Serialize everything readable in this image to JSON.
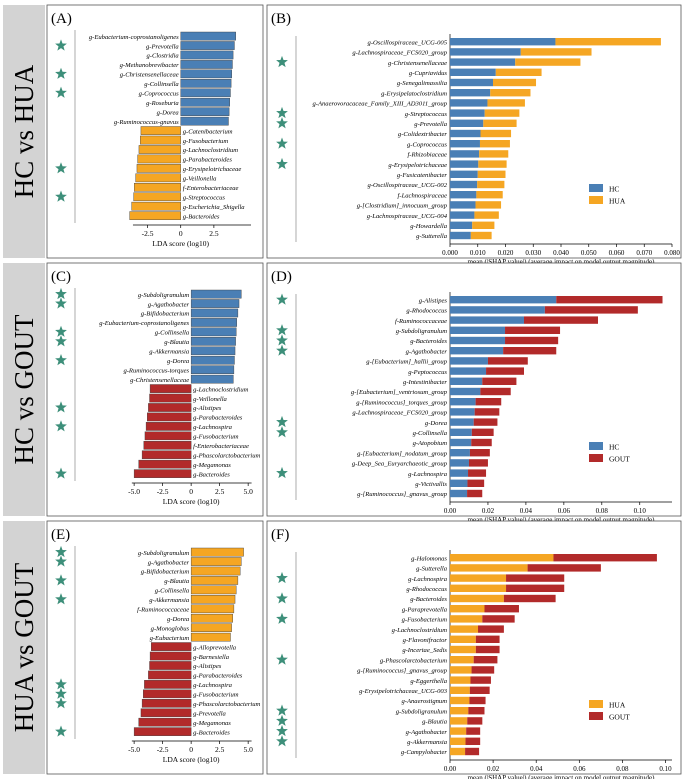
{
  "colors": {
    "hc": "#4a7fb5",
    "hua": "#f5a623",
    "gout": "#b22a2a",
    "star": "#3d8f7a",
    "row_label_bg": "#d3d3d3",
    "border": "#555555"
  },
  "rows": [
    {
      "label": "HC vs HUA"
    },
    {
      "label": "HC vs GOUT"
    },
    {
      "label": "HUA vs GOUT"
    }
  ],
  "chart_data": [
    {
      "type": "bar",
      "panel": "(A)",
      "xlabel": "LDA score (log10)",
      "xlim": [
        -4.2,
        5.6
      ],
      "xticks": [
        -2.5,
        0,
        2.5
      ],
      "groups": [
        "HC",
        "HUA"
      ],
      "bars": [
        {
          "label": "g-Eubacterium-coprostanoligenes",
          "value": 4.15,
          "star": false
        },
        {
          "label": "g-Prevotella",
          "value": 4.05,
          "star": true
        },
        {
          "label": "g-Clostridia",
          "value": 3.95,
          "star": false
        },
        {
          "label": "g-Methanobrevibacter",
          "value": 3.9,
          "star": false
        },
        {
          "label": "g-Christensenellaceae",
          "value": 3.85,
          "star": true
        },
        {
          "label": "g-Collinsella",
          "value": 3.8,
          "star": false
        },
        {
          "label": "g-Coprococcus",
          "value": 3.75,
          "star": true
        },
        {
          "label": "g-Roseburia",
          "value": 3.7,
          "star": false
        },
        {
          "label": "g-Dorea",
          "value": 3.65,
          "star": false
        },
        {
          "label": "g-Ruminococcus-gnavus",
          "value": 3.6,
          "star": false
        },
        {
          "label": "g-Catenibacterium",
          "value": -3.0,
          "star": false
        },
        {
          "label": "g-Fusobacterium",
          "value": -3.05,
          "star": false
        },
        {
          "label": "g-Lachnoclostridium",
          "value": -3.15,
          "star": false
        },
        {
          "label": "g-Parabacteroides",
          "value": -3.25,
          "star": false
        },
        {
          "label": "g-Erysipelotrichaceae",
          "value": -3.3,
          "star": true
        },
        {
          "label": "g-Veillonella",
          "value": -3.4,
          "star": false
        },
        {
          "label": "f-Enterobacteriaceae",
          "value": -3.5,
          "star": false
        },
        {
          "label": "g-Streptococcus",
          "value": -3.55,
          "star": true
        },
        {
          "label": "g-Escherichia_Shigella",
          "value": -3.7,
          "star": false
        },
        {
          "label": "g-Bacteroides",
          "value": -3.85,
          "star": false
        }
      ]
    },
    {
      "type": "bar",
      "panel": "(B)",
      "xlabel": "mean (|SHAP value|) (average impact on model output magnitude)",
      "xlim": [
        0,
        0.08
      ],
      "xticks": [
        0,
        0.01,
        0.02,
        0.03,
        0.04,
        0.05,
        0.06,
        0.07,
        0.08
      ],
      "xtick_labels": [
        "0.000",
        "0.010",
        "0.020",
        "0.030",
        "0.040",
        "0.050",
        "0.060",
        "0.070",
        "0.080"
      ],
      "legend": [
        "HC",
        "HUA"
      ],
      "legend_position": "bottom-right",
      "series": [
        {
          "name": "HC",
          "values": [
            0.038,
            0.0255,
            0.0235,
            0.0165,
            0.0155,
            0.0145,
            0.0135,
            0.0125,
            0.012,
            0.011,
            0.0108,
            0.0105,
            0.0102,
            0.01,
            0.0098,
            0.0095,
            0.0092,
            0.0088,
            0.008,
            0.0075
          ]
        },
        {
          "name": "HUA",
          "values": [
            0.038,
            0.0255,
            0.0235,
            0.0165,
            0.0155,
            0.0145,
            0.0135,
            0.0125,
            0.012,
            0.011,
            0.0108,
            0.0105,
            0.0102,
            0.01,
            0.0098,
            0.0095,
            0.0092,
            0.0088,
            0.008,
            0.0075
          ]
        }
      ],
      "bars": [
        {
          "label": "g-Oscillospiraceae_UCG-005",
          "star": false
        },
        {
          "label": "g-Lachnospiraceae_FCS020_group",
          "star": false
        },
        {
          "label": "g-Christensenellaceae",
          "star": true
        },
        {
          "label": "g-Cupriavidus",
          "star": false
        },
        {
          "label": "g-Senegalimassilia",
          "star": false
        },
        {
          "label": "g-Erysipelatoclostridium",
          "star": false
        },
        {
          "label": "g-Anaerovoracaceae_Family_XIII_AD3011_group",
          "star": false
        },
        {
          "label": "g-Streptococcus",
          "star": true
        },
        {
          "label": "g-Prevotella",
          "star": true
        },
        {
          "label": "g-Colidextribacter",
          "star": false
        },
        {
          "label": "g-Coprococcus",
          "star": true
        },
        {
          "label": "f-Rhizobiaceae",
          "star": false
        },
        {
          "label": "g-Erysipelotrichaceae",
          "star": true
        },
        {
          "label": "g-Fusicatenibacter",
          "star": false
        },
        {
          "label": "g-Oscillospiraceae_UCG-002",
          "star": false
        },
        {
          "label": "f-Lachnospiraceae",
          "star": false
        },
        {
          "label": "g-[Clostridium]_innocuum_group",
          "star": false
        },
        {
          "label": "g-Lachnospiraceae_UCG-004",
          "star": false
        },
        {
          "label": "g-Howardella",
          "star": false
        },
        {
          "label": "g-Sutterella",
          "star": false
        }
      ]
    },
    {
      "type": "bar",
      "panel": "(C)",
      "xlabel": "LDA score (log10)",
      "xlim": [
        -5.8,
        5.6
      ],
      "xticks": [
        -5.0,
        -2.5,
        0,
        2.5,
        5.0
      ],
      "groups": [
        "HC",
        "GOUT"
      ],
      "bars": [
        {
          "label": "g-Subdoligranulum",
          "value": 4.4,
          "star": true
        },
        {
          "label": "g-Agathobacter",
          "value": 4.2,
          "star": true
        },
        {
          "label": "g-Bifidobacterium",
          "value": 4.1,
          "star": false
        },
        {
          "label": "g-Eubacterium-coprostanoligenes",
          "value": 4.0,
          "star": false
        },
        {
          "label": "g-Collinsella",
          "value": 3.95,
          "star": true
        },
        {
          "label": "g-Blautia",
          "value": 3.9,
          "star": true
        },
        {
          "label": "g-Akkermansia",
          "value": 3.85,
          "star": false
        },
        {
          "label": "g-Dorea",
          "value": 3.8,
          "star": true
        },
        {
          "label": "g-Ruminococcus-torques",
          "value": 3.75,
          "star": false
        },
        {
          "label": "g-Christensenellaceae",
          "value": 3.7,
          "star": false
        },
        {
          "label": "g-Lachnoclostridium",
          "value": -3.6,
          "star": false
        },
        {
          "label": "g-Veillonella",
          "value": -3.65,
          "star": false
        },
        {
          "label": "g-Alistipes",
          "value": -3.75,
          "star": true
        },
        {
          "label": "g-Parabacteroides",
          "value": -3.85,
          "star": false
        },
        {
          "label": "g-Lachnospira",
          "value": -3.95,
          "star": true
        },
        {
          "label": "g-Fusobacterium",
          "value": -4.05,
          "star": false
        },
        {
          "label": "f-Enterobacteriaceae",
          "value": -4.15,
          "star": false
        },
        {
          "label": "g-Phascolarctobacterium",
          "value": -4.3,
          "star": false
        },
        {
          "label": "g-Megamonas",
          "value": -4.6,
          "star": false
        },
        {
          "label": "g-Bacteroides",
          "value": -5.0,
          "star": true
        }
      ]
    },
    {
      "type": "bar",
      "panel": "(D)",
      "xlabel": "mean (|SHAP value|) (average impact on model output magnitude)",
      "xlim": [
        0,
        0.117
      ],
      "xticks": [
        0,
        0.02,
        0.04,
        0.06,
        0.08,
        0.1
      ],
      "xtick_labels": [
        "0.00",
        "0.02",
        "0.04",
        "0.06",
        "0.08",
        "0.10"
      ],
      "legend": [
        "HC",
        "GOUT"
      ],
      "legend_position": "bottom-right",
      "series": [
        {
          "name": "HC",
          "values": [
            0.056,
            0.05,
            0.039,
            0.029,
            0.029,
            0.028,
            0.02,
            0.019,
            0.017,
            0.016,
            0.0135,
            0.013,
            0.0125,
            0.0115,
            0.0112,
            0.0105,
            0.01,
            0.0095,
            0.0092,
            0.009
          ]
        },
        {
          "name": "GOUT",
          "values": [
            0.056,
            0.049,
            0.039,
            0.029,
            0.028,
            0.028,
            0.021,
            0.02,
            0.018,
            0.016,
            0.0135,
            0.013,
            0.0125,
            0.0115,
            0.0108,
            0.0105,
            0.01,
            0.0095,
            0.0088,
            0.008
          ]
        }
      ],
      "bars": [
        {
          "label": "g-Alistipes",
          "star": true
        },
        {
          "label": "g-Rhodococcus",
          "star": false
        },
        {
          "label": "f-Ruminococcaceae",
          "star": false
        },
        {
          "label": "g-Subdoligranulum",
          "star": true
        },
        {
          "label": "g-Bacteroides",
          "star": true
        },
        {
          "label": "g-Agathobacter",
          "star": true
        },
        {
          "label": "g-[Eubacterium]_hallii_group",
          "star": false
        },
        {
          "label": "g-Peptococcus",
          "star": false
        },
        {
          "label": "g-Intestinibacter",
          "star": false
        },
        {
          "label": "g-[Eubacterium]_ventriosum_group",
          "star": false
        },
        {
          "label": "g-[Ruminococcus]_torques_group",
          "star": false
        },
        {
          "label": "g-Lachnospiraceae_FCS020_group",
          "star": false
        },
        {
          "label": "g-Dorea",
          "star": true
        },
        {
          "label": "g-Collinsella",
          "star": true
        },
        {
          "label": "g-Atopobium",
          "star": false
        },
        {
          "label": "g-[Eubacterium]_nodatum_group",
          "star": false
        },
        {
          "label": "g-Deep_Sea_Euryarchaeotic_group",
          "star": false
        },
        {
          "label": "g-Lachnospira",
          "star": true
        },
        {
          "label": "g-Victivallis",
          "star": false
        },
        {
          "label": "g-[Ruminococcus]_gnavus_group",
          "star": false
        }
      ]
    },
    {
      "type": "bar",
      "panel": "(E)",
      "xlabel": "LDA score (log10)",
      "xlim": [
        -5.8,
        5.6
      ],
      "xticks": [
        -5.0,
        -2.5,
        0,
        2.5,
        5.0
      ],
      "groups": [
        "HUA",
        "GOUT"
      ],
      "bars": [
        {
          "label": "g-Subdoligranulum",
          "value": 4.6,
          "star": true
        },
        {
          "label": "g-Agathobacter",
          "value": 4.4,
          "star": true
        },
        {
          "label": "g-Bifidobacterium",
          "value": 4.3,
          "star": false
        },
        {
          "label": "g-Blautia",
          "value": 4.1,
          "star": true
        },
        {
          "label": "g-Collinsella",
          "value": 3.95,
          "star": false
        },
        {
          "label": "g-Akkermansia",
          "value": 3.85,
          "star": true
        },
        {
          "label": "f-Ruminococcaceae",
          "value": 3.75,
          "star": false
        },
        {
          "label": "g-Dorea",
          "value": 3.65,
          "star": false
        },
        {
          "label": "g-Monoglobus",
          "value": 3.55,
          "star": false
        },
        {
          "label": "g-Eubacterium",
          "value": 3.45,
          "star": false
        },
        {
          "label": "g-Alloprevotella",
          "value": -3.5,
          "star": false
        },
        {
          "label": "g-Barnesiella",
          "value": -3.6,
          "star": false
        },
        {
          "label": "g-Alistipes",
          "value": -3.65,
          "star": false
        },
        {
          "label": "g-Parabacteroides",
          "value": -3.75,
          "star": false
        },
        {
          "label": "g-Lachnospira",
          "value": -4.1,
          "star": true
        },
        {
          "label": "g-Fusobacterium",
          "value": -4.2,
          "star": true
        },
        {
          "label": "g-Phascolarctobacterium",
          "value": -4.3,
          "star": true
        },
        {
          "label": "g-Prevotella",
          "value": -4.4,
          "star": false
        },
        {
          "label": "g-Megamonas",
          "value": -4.6,
          "star": false
        },
        {
          "label": "g-Bacteroides",
          "value": -5.0,
          "star": true
        }
      ]
    },
    {
      "type": "bar",
      "panel": "(F)",
      "xlabel": "mean (|SHAP value|) (average impact on model output magnitude)",
      "xlim": [
        0,
        0.103
      ],
      "xticks": [
        0,
        0.02,
        0.04,
        0.06,
        0.08,
        0.1
      ],
      "xtick_labels": [
        "0.00",
        "0.02",
        "0.04",
        "0.06",
        "0.08",
        "0.10"
      ],
      "legend": [
        "HUA",
        "GOUT"
      ],
      "legend_position": "bottom-right",
      "series": [
        {
          "name": "HUA",
          "values": [
            0.048,
            0.036,
            0.026,
            0.026,
            0.025,
            0.016,
            0.015,
            0.013,
            0.012,
            0.012,
            0.011,
            0.01,
            0.0095,
            0.0092,
            0.009,
            0.0085,
            0.008,
            0.0075,
            0.0072,
            0.007
          ]
        },
        {
          "name": "GOUT",
          "values": [
            0.048,
            0.034,
            0.027,
            0.027,
            0.024,
            0.016,
            0.015,
            0.012,
            0.011,
            0.011,
            0.011,
            0.0105,
            0.0095,
            0.0092,
            0.0075,
            0.0075,
            0.007,
            0.0065,
            0.0068,
            0.0065
          ]
        }
      ],
      "bars": [
        {
          "label": "g-Halomonas",
          "star": false
        },
        {
          "label": "g-Sutterella",
          "star": false
        },
        {
          "label": "g-Lachnospira",
          "star": true
        },
        {
          "label": "g-Rhodococcus",
          "star": false
        },
        {
          "label": "g-Bacteroides",
          "star": true
        },
        {
          "label": "g-Paraprevotella",
          "star": false
        },
        {
          "label": "g-Fusobacterium",
          "star": true
        },
        {
          "label": "g-Lachnoclostridium",
          "star": false
        },
        {
          "label": "g-Flavonifractor",
          "star": false
        },
        {
          "label": "g-Incertae_Sedis",
          "star": false
        },
        {
          "label": "g-Phascolarctobacterium",
          "star": true
        },
        {
          "label": "g-[Ruminococcus]_gnavus_group",
          "star": false
        },
        {
          "label": "g-Eggerthella",
          "star": false
        },
        {
          "label": "g-Erysipelotrichaceae_UCG-003",
          "star": false
        },
        {
          "label": "g-Anaerostignum",
          "star": false
        },
        {
          "label": "g-Subdoligranulum",
          "star": true
        },
        {
          "label": "g-Blautia",
          "star": true
        },
        {
          "label": "g-Agathobacter",
          "star": true
        },
        {
          "label": "g-Akkermansia",
          "star": true
        },
        {
          "label": "g-Campylobacter",
          "star": false
        }
      ]
    }
  ]
}
